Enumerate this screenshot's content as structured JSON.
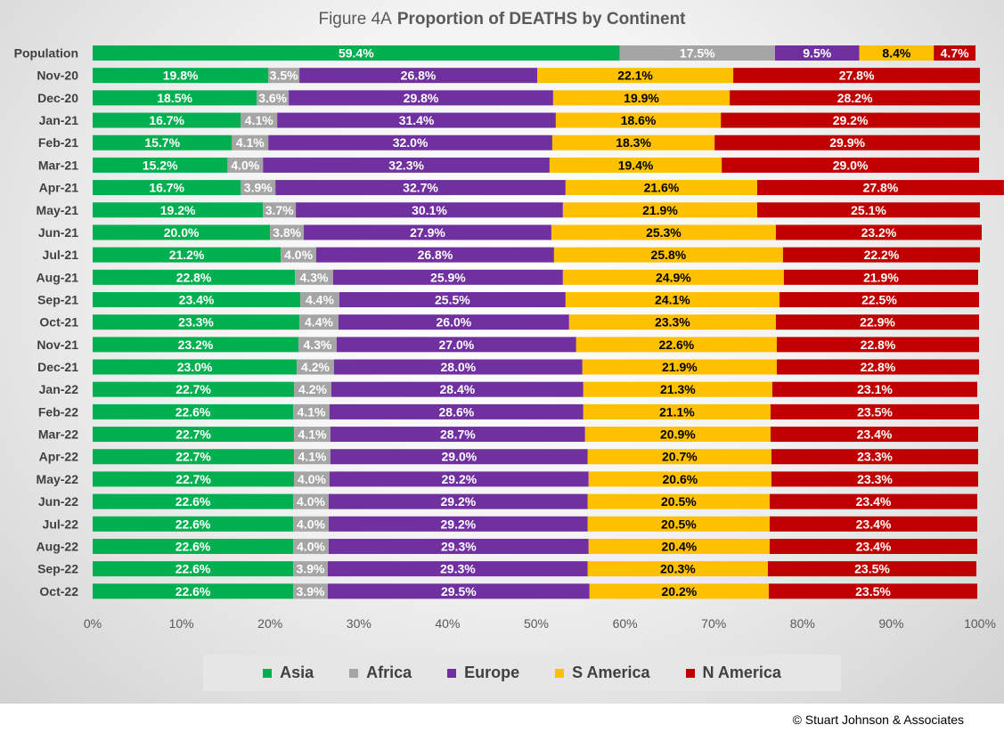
{
  "chart_data": {
    "type": "bar",
    "orientation": "horizontal",
    "stacked": "percent",
    "title_prefix": "Figure  4A",
    "title": "Proportion of DEATHS by Continent",
    "xlim": [
      0,
      100
    ],
    "x_ticks": [
      "0%",
      "10%",
      "20%",
      "30%",
      "40%",
      "50%",
      "60%",
      "70%",
      "80%",
      "90%",
      "100%"
    ],
    "legend_position": "bottom",
    "categories": [
      "Population",
      "Nov-20",
      "Dec-20",
      "Jan-21",
      "Feb-21",
      "Mar-21",
      "Apr-21",
      "May-21",
      "Jun-21",
      "Jul-21",
      "Aug-21",
      "Sep-21",
      "Oct-21",
      "Nov-21",
      "Dec-21",
      "Jan-22",
      "Feb-22",
      "Mar-22",
      "Apr-22",
      "May-22",
      "Jun-22",
      "Jul-22",
      "Aug-22",
      "Sep-22",
      "Oct-22"
    ],
    "series": [
      {
        "name": "Asia",
        "color": "#00b050",
        "label_color": "#ffffff",
        "values": [
          59.4,
          19.8,
          18.5,
          16.7,
          15.7,
          15.2,
          16.7,
          19.2,
          20.0,
          21.2,
          22.8,
          23.4,
          23.3,
          23.2,
          23.0,
          22.7,
          22.6,
          22.7,
          22.7,
          22.7,
          22.6,
          22.6,
          22.6,
          22.6,
          22.6
        ]
      },
      {
        "name": "Africa",
        "color": "#a5a5a5",
        "label_color": "#ffffff",
        "values": [
          17.5,
          3.5,
          3.6,
          4.1,
          4.1,
          4.0,
          3.9,
          3.7,
          3.8,
          4.0,
          4.3,
          4.4,
          4.4,
          4.3,
          4.2,
          4.2,
          4.1,
          4.1,
          4.1,
          4.0,
          4.0,
          4.0,
          4.0,
          3.9,
          3.9
        ]
      },
      {
        "name": "Europe",
        "color": "#7030a0",
        "label_color": "#ffffff",
        "values": [
          9.5,
          26.8,
          29.8,
          31.4,
          32.0,
          32.3,
          32.7,
          30.1,
          27.9,
          26.8,
          25.9,
          25.5,
          26.0,
          27.0,
          28.0,
          28.4,
          28.6,
          28.7,
          29.0,
          29.2,
          29.2,
          29.2,
          29.3,
          29.3,
          29.5
        ]
      },
      {
        "name": "S America",
        "color": "#ffc000",
        "label_color": "#000000",
        "values": [
          8.4,
          22.1,
          19.9,
          18.6,
          18.3,
          19.4,
          21.6,
          21.9,
          25.3,
          25.8,
          24.9,
          24.1,
          23.3,
          22.6,
          21.9,
          21.3,
          21.1,
          20.9,
          20.7,
          20.6,
          20.5,
          20.5,
          20.4,
          20.3,
          20.2
        ]
      },
      {
        "name": "N America",
        "color": "#c00000",
        "label_color": "#ffffff",
        "values": [
          4.7,
          27.8,
          28.2,
          29.2,
          29.9,
          29.0,
          27.8,
          25.1,
          23.2,
          22.2,
          21.9,
          22.5,
          22.9,
          22.8,
          22.8,
          23.1,
          23.5,
          23.4,
          23.3,
          23.3,
          23.4,
          23.4,
          23.4,
          23.5,
          23.5
        ]
      }
    ]
  },
  "footer": {
    "copyright": "© Stuart Johnson & Associates"
  }
}
